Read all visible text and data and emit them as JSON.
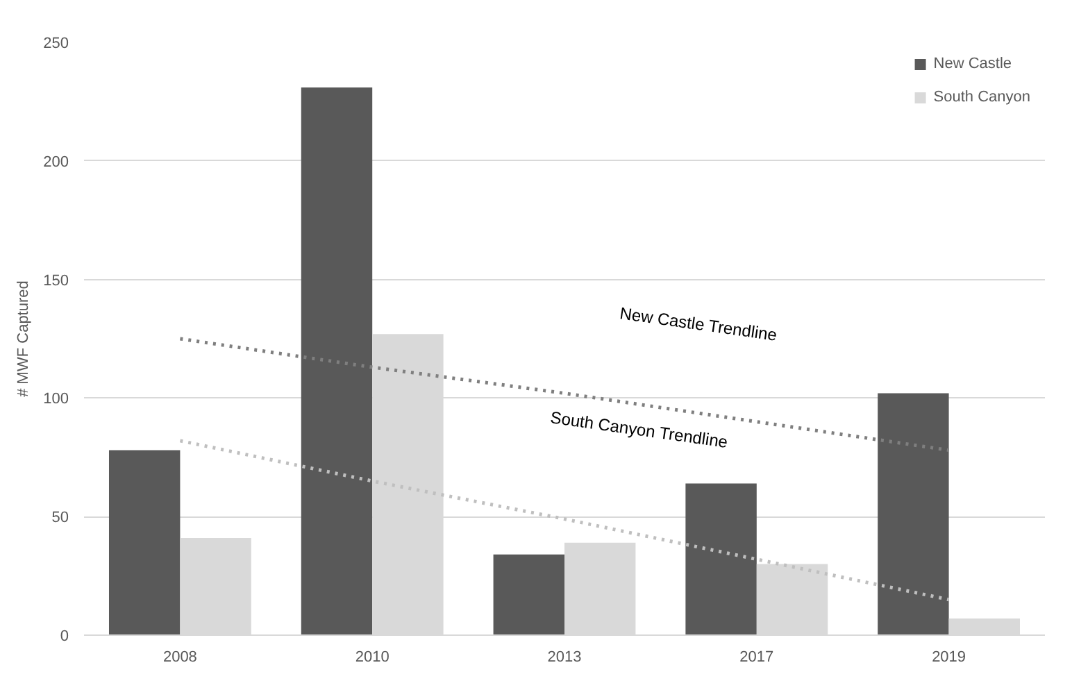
{
  "chart_data": {
    "type": "bar",
    "ylabel": "# MWF Captured",
    "categories": [
      "2008",
      "2010",
      "2013",
      "2017",
      "2019"
    ],
    "series": [
      {
        "name": "New Castle",
        "color": "#595959",
        "values": [
          78,
          231,
          34,
          64,
          102
        ]
      },
      {
        "name": "South Canyon",
        "color": "#d9d9d9",
        "values": [
          41,
          127,
          39,
          30,
          7
        ]
      },
      {
        "type": "line",
        "color": "#7f7f7f",
        "values": [
          125,
          113,
          102,
          90,
          78
        ],
        "line_style": "dotted"
      },
      {
        "type": "line",
        "color": "#bfbfbf",
        "values": [
          82,
          65,
          49,
          32,
          15
        ],
        "line_style": "dotted"
      }
    ],
    "annotations": [
      "New Castle  Trendline",
      "South Canyon Trendline"
    ],
    "ylim": [
      0,
      250
    ],
    "yticks": [
      0,
      50,
      100,
      150,
      200,
      250
    ],
    "grid": "y",
    "legend": "top right"
  }
}
